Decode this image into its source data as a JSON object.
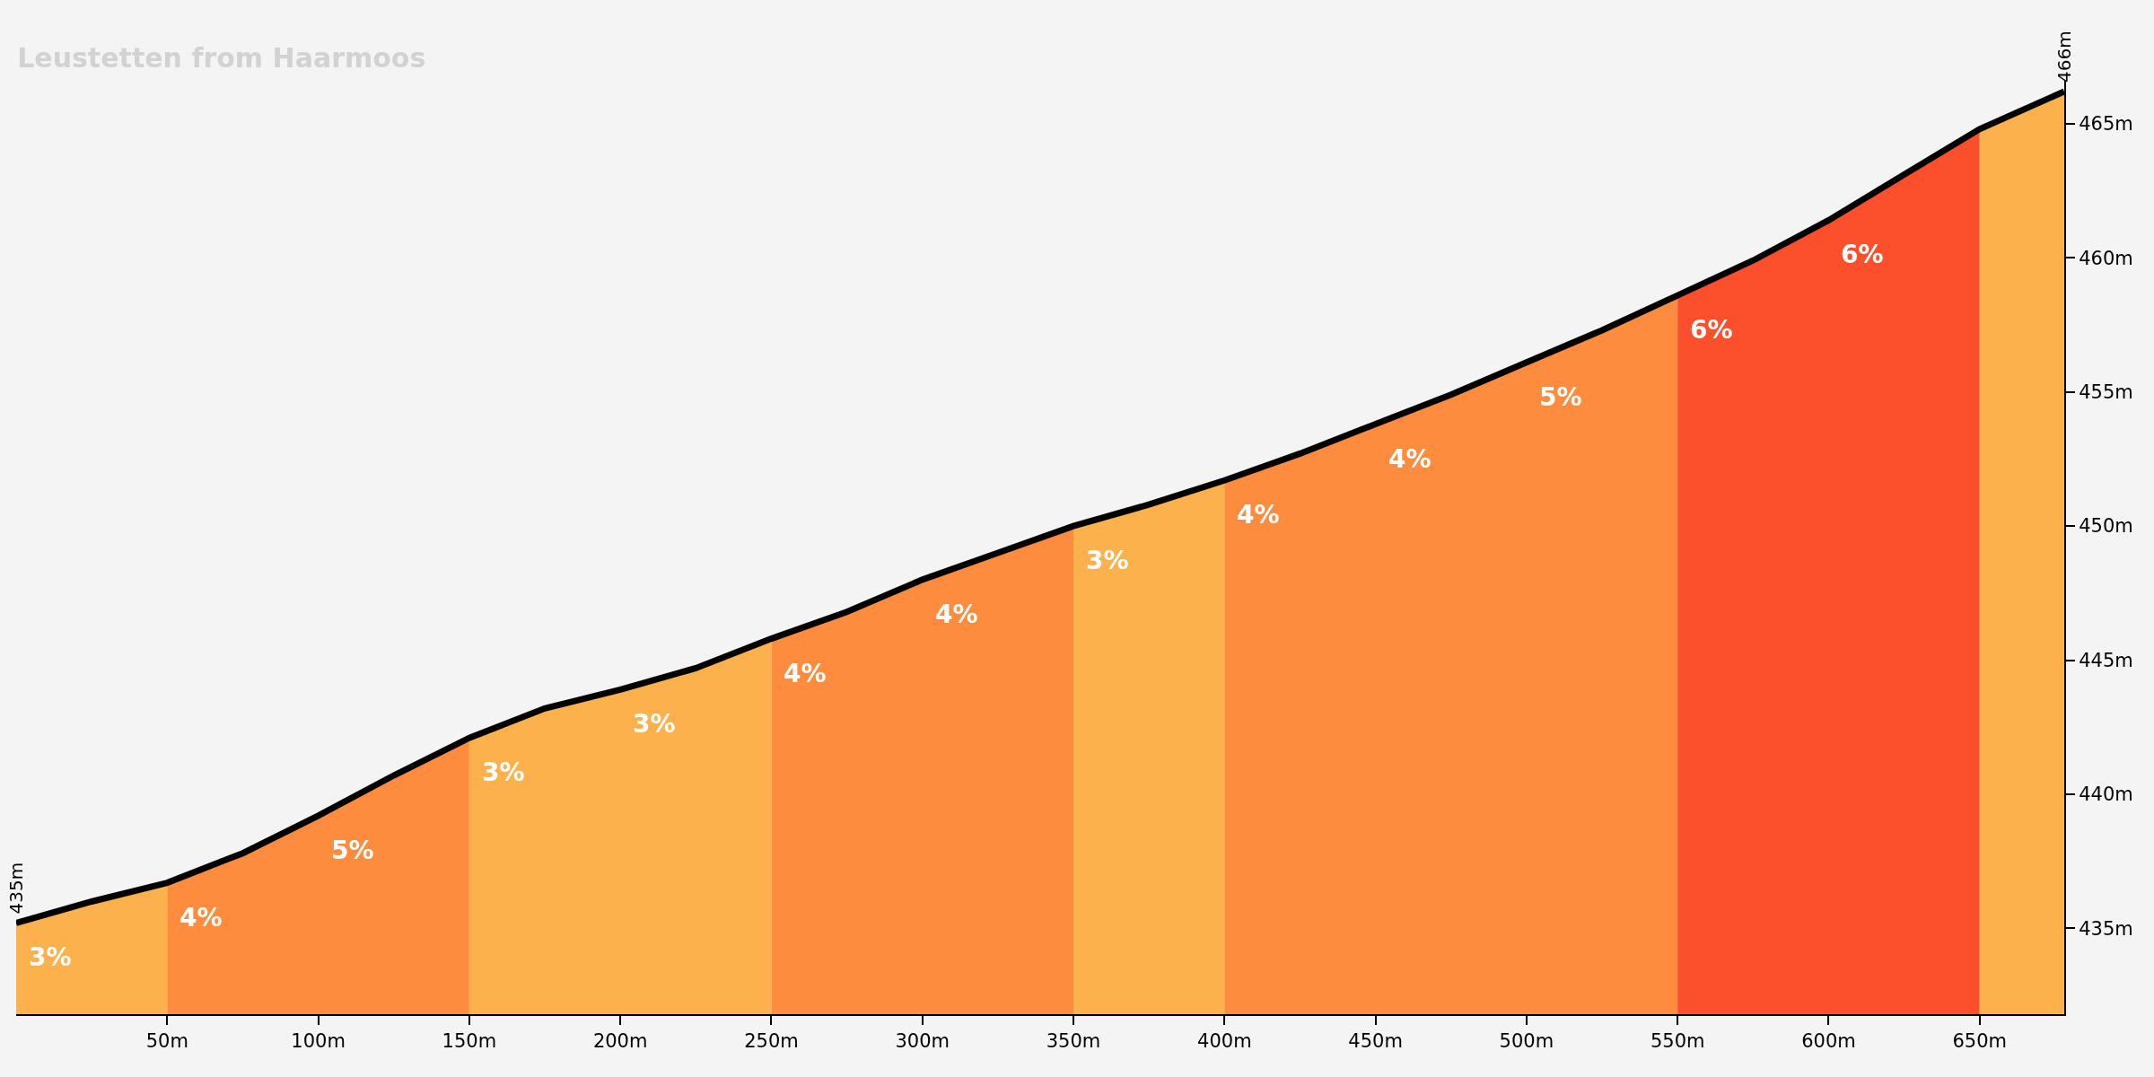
{
  "chart_data": {
    "type": "area",
    "title": "Leustetten from Haarmoos",
    "xlim": [
      0,
      678
    ],
    "ylim": [
      431.8,
      466.6
    ],
    "xticks": [
      {
        "value": 50,
        "label": "50m"
      },
      {
        "value": 100,
        "label": "100m"
      },
      {
        "value": 150,
        "label": "150m"
      },
      {
        "value": 200,
        "label": "200m"
      },
      {
        "value": 250,
        "label": "250m"
      },
      {
        "value": 300,
        "label": "300m"
      },
      {
        "value": 350,
        "label": "350m"
      },
      {
        "value": 400,
        "label": "400m"
      },
      {
        "value": 450,
        "label": "450m"
      },
      {
        "value": 500,
        "label": "500m"
      },
      {
        "value": 550,
        "label": "550m"
      },
      {
        "value": 600,
        "label": "600m"
      },
      {
        "value": 650,
        "label": "650m"
      }
    ],
    "yticks": [
      {
        "value": 435,
        "label": "435m"
      },
      {
        "value": 440,
        "label": "440m"
      },
      {
        "value": 445,
        "label": "445m"
      },
      {
        "value": 450,
        "label": "450m"
      },
      {
        "value": 455,
        "label": "455m"
      },
      {
        "value": 460,
        "label": "460m"
      },
      {
        "value": 465,
        "label": "465m"
      }
    ],
    "grid": false,
    "series": [
      {
        "color": "#fdb14c",
        "x": [
          0,
          25,
          50
        ],
        "values": [
          435.2,
          436.0,
          436.7
        ]
      },
      {
        "color": "#fd8c3e",
        "x": [
          50,
          75,
          100,
          125,
          150
        ],
        "values": [
          436.7,
          437.8,
          439.2,
          440.7,
          442.1
        ]
      },
      {
        "color": "#fdb14c",
        "x": [
          150,
          175,
          200,
          225,
          250
        ],
        "values": [
          442.1,
          443.2,
          443.9,
          444.7,
          445.8
        ]
      },
      {
        "color": "#fd8c3e",
        "x": [
          250,
          275,
          300,
          325,
          350
        ],
        "values": [
          445.8,
          446.8,
          448.0,
          449.0,
          450.0
        ]
      },
      {
        "color": "#fdb14c",
        "x": [
          350,
          375,
          400
        ],
        "values": [
          450.0,
          450.8,
          451.7
        ]
      },
      {
        "color": "#fd8c3e",
        "x": [
          400,
          425,
          450,
          475,
          500,
          525,
          550
        ],
        "values": [
          451.7,
          452.7,
          453.8,
          454.9,
          456.1,
          457.3,
          458.6
        ]
      },
      {
        "color": "#fc4f2b",
        "x": [
          550,
          575,
          600,
          625,
          650
        ],
        "values": [
          458.6,
          459.9,
          461.4,
          463.1,
          464.8
        ]
      },
      {
        "color": "#fdb14c",
        "x": [
          650,
          678
        ],
        "values": [
          464.8,
          466.2
        ]
      },
      {
        "type": "line",
        "color": "#000000",
        "x": [
          0,
          25,
          50,
          75,
          100,
          125,
          150,
          175,
          200,
          225,
          250,
          275,
          300,
          325,
          350,
          375,
          400,
          425,
          450,
          475,
          500,
          525,
          550,
          575,
          600,
          625,
          650,
          678
        ],
        "values": [
          435.2,
          436.0,
          436.7,
          437.8,
          439.2,
          440.7,
          442.1,
          443.2,
          443.9,
          444.7,
          445.8,
          446.8,
          448.0,
          449.0,
          450.0,
          450.8,
          451.7,
          452.7,
          453.8,
          454.9,
          456.1,
          457.3,
          458.6,
          459.9,
          461.4,
          463.1,
          464.8,
          466.2
        ]
      }
    ],
    "annotations": [
      {
        "text": "3%",
        "x": 0,
        "y": 435.2
      },
      {
        "text": "4%",
        "x": 50,
        "y": 436.7
      },
      {
        "text": "5%",
        "x": 100,
        "y": 439.2
      },
      {
        "text": "3%",
        "x": 150,
        "y": 442.1
      },
      {
        "text": "3%",
        "x": 200,
        "y": 443.9
      },
      {
        "text": "4%",
        "x": 250,
        "y": 445.8
      },
      {
        "text": "4%",
        "x": 300,
        "y": 448.0
      },
      {
        "text": "3%",
        "x": 350,
        "y": 450.0
      },
      {
        "text": "4%",
        "x": 400,
        "y": 451.7
      },
      {
        "text": "4%",
        "x": 450,
        "y": 453.8
      },
      {
        "text": "5%",
        "x": 500,
        "y": 456.1
      },
      {
        "text": "6%",
        "x": 550,
        "y": 458.6
      },
      {
        "text": "6%",
        "x": 600,
        "y": 461.4
      },
      {
        "text": "435m",
        "x": 0,
        "y": 435.2
      },
      {
        "text": "466m",
        "x": 678,
        "y": 466.2
      }
    ]
  }
}
